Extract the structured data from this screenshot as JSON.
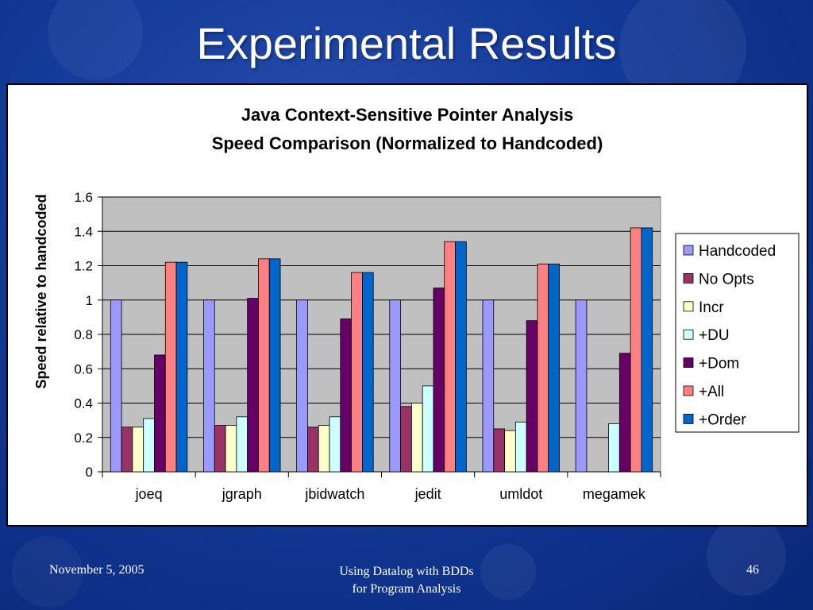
{
  "slide": {
    "title": "Experimental Results",
    "footer_date": "November 5, 2005",
    "footer_center_line1": "Using Datalog with BDDs",
    "footer_center_line2": "for Program Analysis",
    "page_number": "46"
  },
  "colors": {
    "background": "#123a98",
    "plot_area": "#c0c0c0",
    "series": [
      "#9999ff",
      "#993366",
      "#ffffcc",
      "#ccffff",
      "#660066",
      "#ff8080",
      "#0066cc"
    ]
  },
  "chart_data": {
    "type": "bar",
    "title_line1": "Java Context-Sensitive Pointer Analysis",
    "title_line2": "Speed Comparison (Normalized to Handcoded)",
    "ylabel": "Speed relative to handcoded",
    "xlabel": "",
    "ylim": [
      0,
      1.6
    ],
    "yticks": [
      "0",
      "0.2",
      "0.4",
      "0.6",
      "0.8",
      "1",
      "1.2",
      "1.4",
      "1.6"
    ],
    "grid": true,
    "legend_position": "right",
    "categories": [
      "joeq",
      "jgraph",
      "jbidwatch",
      "jedit",
      "umldot",
      "megamek"
    ],
    "series": [
      {
        "name": "Handcoded",
        "values": [
          1,
          1,
          1,
          1,
          1,
          1
        ]
      },
      {
        "name": "No Opts",
        "values": [
          0.26,
          0.27,
          0.26,
          0.38,
          0.25,
          null
        ]
      },
      {
        "name": "Incr",
        "values": [
          0.26,
          0.27,
          0.27,
          0.4,
          0.24,
          null
        ]
      },
      {
        "name": "+DU",
        "values": [
          0.31,
          0.32,
          0.32,
          0.5,
          0.29,
          0.28
        ]
      },
      {
        "name": "+Dom",
        "values": [
          0.68,
          1.01,
          0.89,
          1.07,
          0.88,
          0.69
        ]
      },
      {
        "name": "+All",
        "values": [
          1.22,
          1.24,
          1.16,
          1.34,
          1.21,
          1.42
        ]
      },
      {
        "name": "+Order",
        "values": [
          1.22,
          1.24,
          1.16,
          1.34,
          1.21,
          1.42
        ]
      }
    ]
  }
}
